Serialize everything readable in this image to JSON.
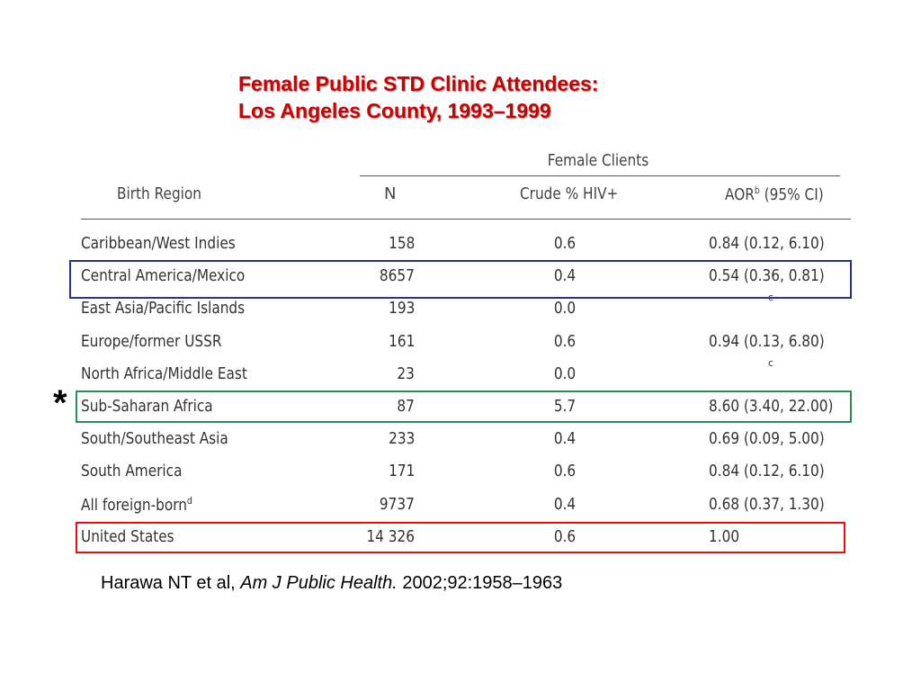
{
  "title": {
    "line1": "Female Public STD Clinic Attendees:",
    "line2": "Los Angeles County, 1993–1999"
  },
  "table": {
    "group_header": "Female Clients",
    "headers": {
      "region": "Birth Region",
      "n": "N",
      "crude": "Crude % HIV+",
      "aor": "AOR",
      "aor_sup": "b",
      "aor_ci": " (95% CI)"
    },
    "rows": [
      {
        "region": "Caribbean/West Indies",
        "region_sup": "",
        "n": "158",
        "crude": "0.6",
        "aor": "0.84 (0.12, 6.10)"
      },
      {
        "region": "Central America/Mexico",
        "region_sup": "",
        "n": "8657",
        "crude": "0.4",
        "aor": "0.54 (0.36, 0.81)"
      },
      {
        "region": "East Asia/Pacific Islands",
        "region_sup": "",
        "n": "193",
        "crude": "0.0",
        "aor": "",
        "aor_sup": "c"
      },
      {
        "region": "Europe/former USSR",
        "region_sup": "",
        "n": "161",
        "crude": "0.6",
        "aor": "0.94 (0.13, 6.80)"
      },
      {
        "region": "North Africa/Middle East",
        "region_sup": "",
        "n": "23",
        "crude": "0.0",
        "aor": "",
        "aor_sup": "c"
      },
      {
        "region": "Sub-Saharan Africa",
        "region_sup": "",
        "n": "87",
        "crude": "5.7",
        "aor": "8.60 (3.40, 22.00)"
      },
      {
        "region": "South/Southeast Asia",
        "region_sup": "",
        "n": "233",
        "crude": "0.4",
        "aor": "0.69 (0.09, 5.00)"
      },
      {
        "region": "South America",
        "region_sup": "",
        "n": "171",
        "crude": "0.6",
        "aor": "0.84 (0.12, 6.10)"
      },
      {
        "region": "All foreign-born",
        "region_sup": "d",
        "n": "9737",
        "crude": "0.4",
        "aor": "0.68 (0.37, 1.30)"
      },
      {
        "region": "United States",
        "region_sup": "",
        "n": "14 326",
        "crude": "0.6",
        "aor": "1.00"
      }
    ]
  },
  "highlights": {
    "blue_color": "#2b2f8f",
    "green_color": "#2e8b57",
    "red_color": "#e01010"
  },
  "asterisk": "*",
  "citation": {
    "authors": "Harawa NT et al, ",
    "journal": "Am J Public Health.",
    "details": " 2002;92:1958–1963"
  }
}
